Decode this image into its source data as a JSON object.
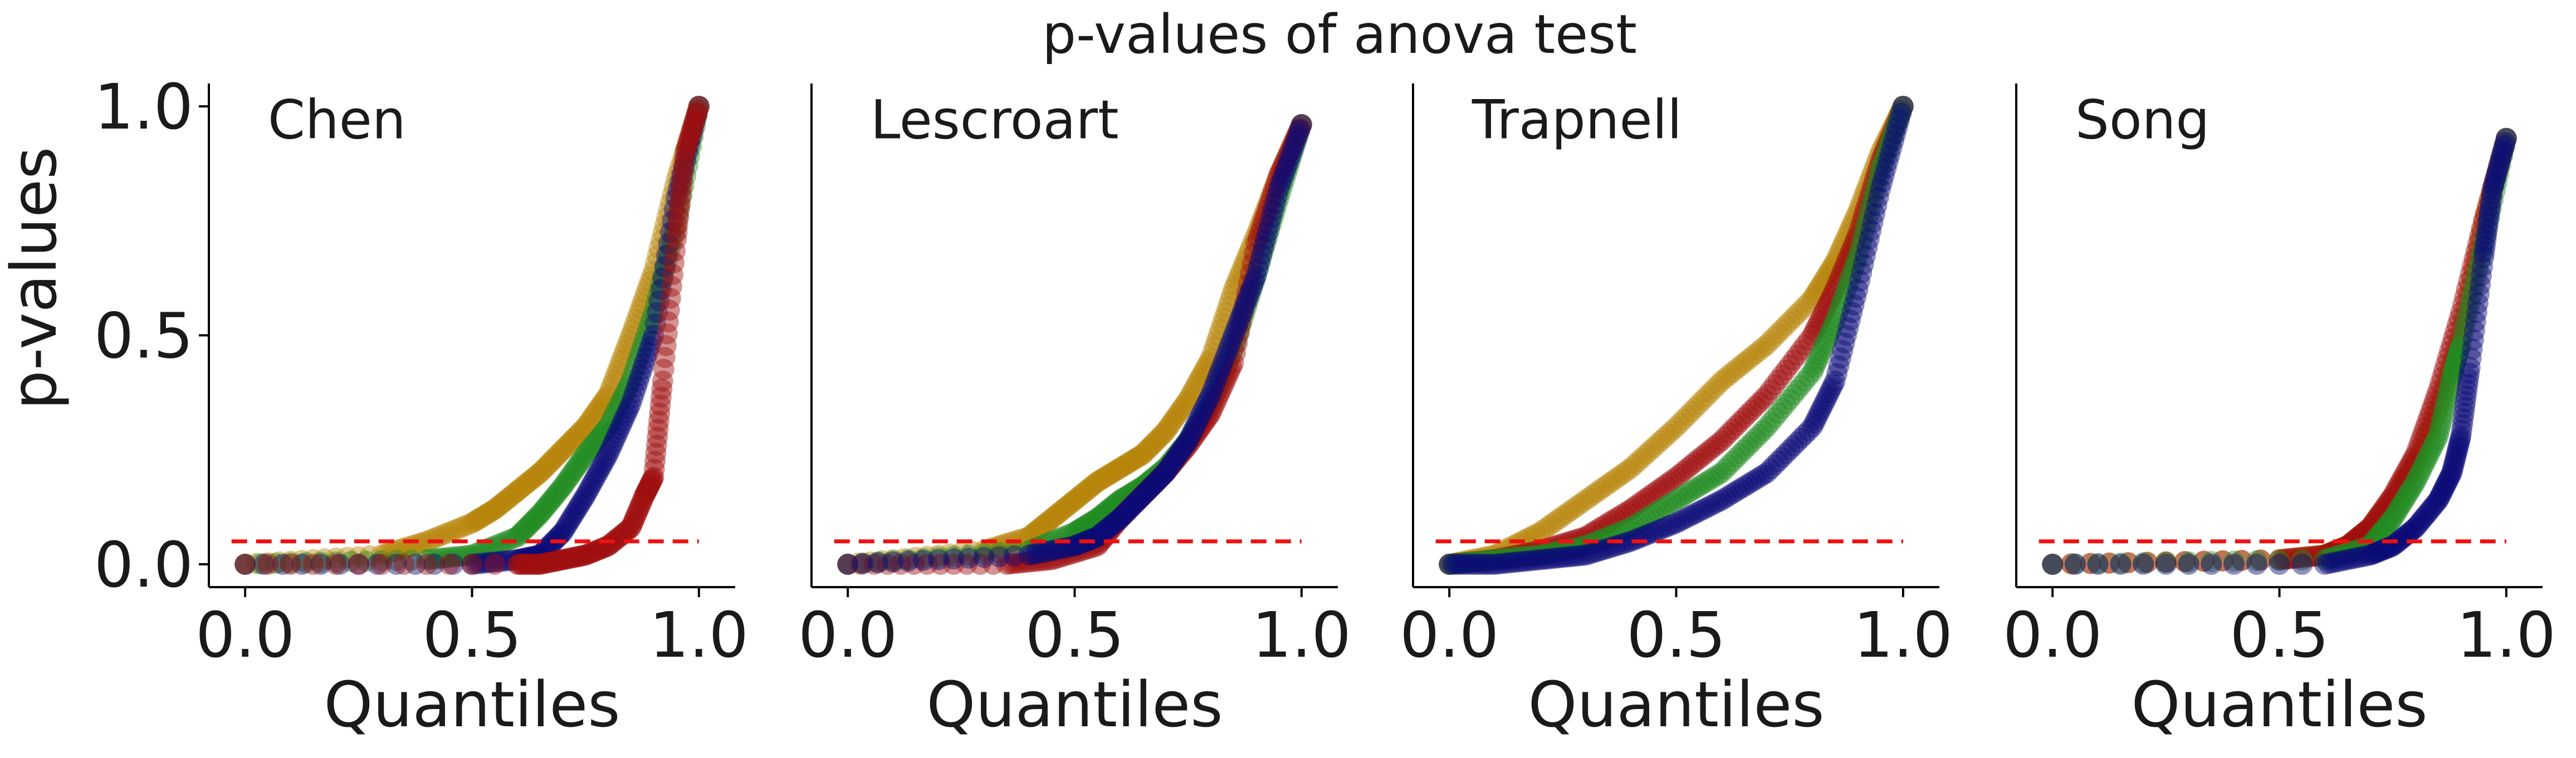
{
  "title": "p-values of anova test",
  "colors": {
    "gold": "#b8860b",
    "red": "#a01010",
    "green": "#228b22",
    "navy": "#0a0a78",
    "threshold": "#ee1111",
    "axis": "#000000"
  },
  "chart_data": [
    {
      "type": "scatter",
      "title": "Chen",
      "xlabel": "Quantiles",
      "ylabel": "p-values",
      "xlim": [
        -0.08,
        1.08
      ],
      "ylim": [
        -0.05,
        1.05
      ],
      "xticks": [
        "0.0",
        "0.5",
        "1.0"
      ],
      "yticks": [
        "0.0",
        "0.5",
        "1.0"
      ],
      "threshold": 0.05,
      "grid": false,
      "series": [
        {
          "color": "gold",
          "x": [
            0.0,
            0.3,
            0.4,
            0.5,
            0.55,
            0.6,
            0.65,
            0.7,
            0.75,
            0.8,
            0.85,
            0.9,
            0.95,
            1.0
          ],
          "y": [
            0.0,
            0.02,
            0.05,
            0.09,
            0.12,
            0.16,
            0.2,
            0.25,
            0.3,
            0.37,
            0.5,
            0.64,
            0.84,
            1.0
          ]
        },
        {
          "color": "green",
          "x": [
            0.0,
            0.4,
            0.5,
            0.6,
            0.65,
            0.7,
            0.75,
            0.8,
            0.85,
            0.9,
            0.95,
            1.0
          ],
          "y": [
            0.0,
            0.01,
            0.02,
            0.06,
            0.11,
            0.17,
            0.24,
            0.3,
            0.4,
            0.55,
            0.74,
            1.0
          ]
        },
        {
          "color": "navy",
          "x": [
            0.0,
            0.5,
            0.6,
            0.65,
            0.7,
            0.75,
            0.8,
            0.85,
            0.9,
            0.95,
            1.0
          ],
          "y": [
            0.0,
            0.0,
            0.01,
            0.02,
            0.07,
            0.15,
            0.24,
            0.35,
            0.5,
            0.8,
            1.0
          ]
        },
        {
          "color": "red",
          "x": [
            0.0,
            0.6,
            0.65,
            0.7,
            0.75,
            0.8,
            0.85,
            0.88,
            0.9,
            0.92,
            0.95,
            0.97,
            1.0
          ],
          "y": [
            0.0,
            0.0,
            0.0,
            0.01,
            0.02,
            0.04,
            0.08,
            0.15,
            0.19,
            0.4,
            0.71,
            0.9,
            1.0
          ]
        }
      ]
    },
    {
      "type": "scatter",
      "title": "Lescroart",
      "xlabel": "Quantiles",
      "ylabel": "",
      "xlim": [
        -0.08,
        1.08
      ],
      "ylim": [
        -0.05,
        1.05
      ],
      "xticks": [
        "0.0",
        "0.5",
        "1.0"
      ],
      "yticks": [],
      "threshold": 0.05,
      "grid": false,
      "series": [
        {
          "color": "gold",
          "x": [
            0.0,
            0.3,
            0.4,
            0.45,
            0.5,
            0.55,
            0.6,
            0.65,
            0.7,
            0.75,
            0.8,
            0.85,
            0.9,
            0.95,
            1.0
          ],
          "y": [
            0.0,
            0.03,
            0.06,
            0.1,
            0.14,
            0.18,
            0.21,
            0.24,
            0.29,
            0.36,
            0.45,
            0.6,
            0.72,
            0.85,
            0.96
          ]
        },
        {
          "color": "green",
          "x": [
            0.0,
            0.4,
            0.5,
            0.55,
            0.6,
            0.65,
            0.7,
            0.75,
            0.8,
            0.85,
            0.9,
            0.95,
            1.0
          ],
          "y": [
            0.0,
            0.03,
            0.07,
            0.1,
            0.14,
            0.17,
            0.21,
            0.27,
            0.35,
            0.47,
            0.63,
            0.8,
            0.96
          ]
        },
        {
          "color": "red",
          "x": [
            0.0,
            0.35,
            0.45,
            0.55,
            0.6,
            0.65,
            0.7,
            0.75,
            0.8,
            0.85,
            0.9,
            0.95,
            1.0
          ],
          "y": [
            0.0,
            0.0,
            0.01,
            0.04,
            0.1,
            0.15,
            0.2,
            0.26,
            0.33,
            0.44,
            0.7,
            0.85,
            0.96
          ]
        },
        {
          "color": "navy",
          "x": [
            0.0,
            0.4,
            0.5,
            0.55,
            0.6,
            0.65,
            0.7,
            0.75,
            0.8,
            0.85,
            0.9,
            0.95,
            1.0
          ],
          "y": [
            0.0,
            0.02,
            0.04,
            0.06,
            0.1,
            0.15,
            0.2,
            0.27,
            0.37,
            0.5,
            0.63,
            0.82,
            0.96
          ]
        }
      ]
    },
    {
      "type": "scatter",
      "title": "Trapnell",
      "xlabel": "Quantiles",
      "ylabel": "",
      "xlim": [
        -0.08,
        1.08
      ],
      "ylim": [
        -0.05,
        1.05
      ],
      "xticks": [
        "0.0",
        "0.5",
        "1.0"
      ],
      "yticks": [],
      "threshold": 0.05,
      "grid": false,
      "series": [
        {
          "color": "gold",
          "x": [
            0.0,
            0.1,
            0.2,
            0.3,
            0.4,
            0.5,
            0.6,
            0.7,
            0.8,
            0.85,
            0.9,
            0.95,
            1.0
          ],
          "y": [
            0.0,
            0.02,
            0.07,
            0.14,
            0.21,
            0.3,
            0.4,
            0.48,
            0.58,
            0.66,
            0.77,
            0.9,
            1.0
          ]
        },
        {
          "color": "red",
          "x": [
            0.0,
            0.1,
            0.2,
            0.3,
            0.4,
            0.5,
            0.6,
            0.7,
            0.8,
            0.85,
            0.9,
            0.95,
            1.0
          ],
          "y": [
            0.0,
            0.01,
            0.03,
            0.06,
            0.12,
            0.19,
            0.27,
            0.37,
            0.5,
            0.6,
            0.72,
            0.88,
            1.0
          ]
        },
        {
          "color": "green",
          "x": [
            0.0,
            0.1,
            0.2,
            0.3,
            0.4,
            0.5,
            0.6,
            0.7,
            0.8,
            0.85,
            0.9,
            0.95,
            1.0
          ],
          "y": [
            0.0,
            0.01,
            0.02,
            0.04,
            0.08,
            0.14,
            0.2,
            0.3,
            0.42,
            0.53,
            0.67,
            0.86,
            1.0
          ]
        },
        {
          "color": "navy",
          "x": [
            0.0,
            0.1,
            0.2,
            0.3,
            0.4,
            0.5,
            0.6,
            0.7,
            0.8,
            0.85,
            0.9,
            0.95,
            1.0
          ],
          "y": [
            0.0,
            0.0,
            0.01,
            0.02,
            0.05,
            0.09,
            0.14,
            0.2,
            0.3,
            0.4,
            0.6,
            0.82,
            1.0
          ]
        }
      ]
    },
    {
      "type": "scatter",
      "title": "Song",
      "xlabel": "Quantiles",
      "ylabel": "",
      "xlim": [
        -0.08,
        1.08
      ],
      "ylim": [
        -0.05,
        1.05
      ],
      "xticks": [
        "0.0",
        "0.5",
        "1.0"
      ],
      "yticks": [],
      "threshold": 0.05,
      "grid": false,
      "series": [
        {
          "color": "gold",
          "x": [
            0.0,
            0.5,
            0.6,
            0.65,
            0.7,
            0.75,
            0.8,
            0.85,
            0.9,
            0.95,
            1.0
          ],
          "y": [
            0.0,
            0.01,
            0.02,
            0.04,
            0.08,
            0.14,
            0.22,
            0.34,
            0.5,
            0.75,
            0.93
          ]
        },
        {
          "color": "red",
          "x": [
            0.0,
            0.5,
            0.6,
            0.65,
            0.7,
            0.75,
            0.8,
            0.85,
            0.9,
            0.95,
            1.0
          ],
          "y": [
            0.0,
            0.01,
            0.02,
            0.04,
            0.08,
            0.15,
            0.24,
            0.38,
            0.55,
            0.75,
            0.93
          ]
        },
        {
          "color": "green",
          "x": [
            0.0,
            0.6,
            0.7,
            0.75,
            0.8,
            0.85,
            0.88,
            0.9,
            0.95,
            1.0
          ],
          "y": [
            0.0,
            0.01,
            0.04,
            0.1,
            0.18,
            0.28,
            0.41,
            0.48,
            0.7,
            0.93
          ]
        },
        {
          "color": "navy",
          "x": [
            0.0,
            0.6,
            0.7,
            0.75,
            0.8,
            0.85,
            0.88,
            0.9,
            0.92,
            0.95,
            0.97,
            1.0
          ],
          "y": [
            0.0,
            0.0,
            0.02,
            0.04,
            0.08,
            0.14,
            0.2,
            0.28,
            0.43,
            0.67,
            0.82,
            0.93
          ]
        }
      ]
    }
  ]
}
